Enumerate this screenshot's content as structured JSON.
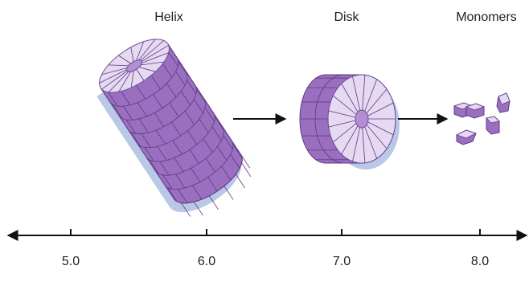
{
  "labels": {
    "helix": "Helix",
    "disk": "Disk",
    "monomers": "Monomers"
  },
  "axis": {
    "ticks": [
      "5.0",
      "6.0",
      "7.0",
      "8.0"
    ]
  }
}
